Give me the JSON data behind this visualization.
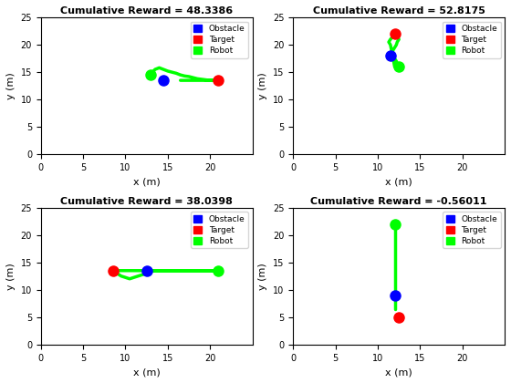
{
  "subplots": [
    {
      "title": "Cumulative Reward = 48.3386",
      "obstacle": [
        14.5,
        13.5
      ],
      "target": [
        21.0,
        13.5
      ],
      "robot_path_x": [
        13.0,
        13.2,
        13.5,
        14.0,
        14.5,
        15.0,
        15.5,
        16.0,
        16.5,
        17.0,
        17.5,
        18.0,
        18.5,
        19.0,
        19.5,
        20.0,
        20.5,
        21.0,
        20.5,
        20.0,
        19.5,
        19.0,
        18.5,
        18.0,
        17.5,
        17.0,
        16.5
      ],
      "robot_path_y": [
        14.5,
        15.0,
        15.5,
        15.8,
        15.5,
        15.2,
        15.0,
        14.8,
        14.5,
        14.3,
        14.2,
        14.0,
        13.8,
        13.7,
        13.6,
        13.5,
        13.5,
        13.5,
        13.5,
        13.5,
        13.5,
        13.5,
        13.5,
        13.5,
        13.5,
        13.5,
        13.5
      ],
      "xlim": [
        0,
        25
      ],
      "ylim": [
        0,
        25
      ],
      "xticks": [
        0,
        5,
        10,
        15,
        20
      ],
      "yticks": [
        0,
        5,
        10,
        15,
        20,
        25
      ]
    },
    {
      "title": "Cumulative Reward = 52.8175",
      "obstacle": [
        11.5,
        18.0
      ],
      "target": [
        12.0,
        22.0
      ],
      "robot_path_x": [
        12.5,
        12.3,
        12.2,
        12.0,
        11.8,
        11.7,
        11.8,
        12.0,
        12.2,
        12.3,
        12.5,
        12.3,
        12.0,
        11.8,
        11.5,
        11.3,
        11.5,
        12.0
      ],
      "robot_path_y": [
        16.0,
        16.5,
        17.0,
        17.5,
        18.0,
        18.5,
        19.0,
        19.5,
        20.0,
        20.5,
        21.0,
        21.5,
        22.0,
        21.5,
        21.0,
        20.5,
        20.0,
        16.0
      ],
      "xlim": [
        0,
        25
      ],
      "ylim": [
        0,
        25
      ],
      "xticks": [
        0,
        5,
        10,
        15,
        20
      ],
      "yticks": [
        0,
        5,
        10,
        15,
        20,
        25
      ]
    },
    {
      "title": "Cumulative Reward = 38.0398",
      "obstacle": [
        12.5,
        13.5
      ],
      "target": [
        8.5,
        13.5
      ],
      "robot_path_x": [
        21.0,
        20.0,
        19.0,
        18.0,
        17.0,
        16.0,
        15.0,
        14.0,
        13.5,
        13.0,
        12.5,
        11.5,
        10.5,
        9.5,
        9.0,
        8.5,
        9.0,
        10.0,
        11.0,
        12.0,
        13.0,
        14.0,
        15.0,
        16.0,
        17.0,
        18.0,
        19.0,
        20.0,
        21.0
      ],
      "robot_path_y": [
        13.5,
        13.5,
        13.5,
        13.5,
        13.5,
        13.5,
        13.5,
        13.5,
        13.5,
        13.3,
        13.0,
        12.5,
        12.0,
        12.5,
        13.0,
        13.5,
        13.5,
        13.5,
        13.5,
        13.5,
        13.5,
        13.5,
        13.5,
        13.5,
        13.5,
        13.5,
        13.5,
        13.5,
        13.5
      ],
      "xlim": [
        0,
        25
      ],
      "ylim": [
        0,
        25
      ],
      "xticks": [
        0,
        5,
        10,
        15,
        20
      ],
      "yticks": [
        0,
        5,
        10,
        15,
        20,
        25
      ]
    },
    {
      "title": "Cumulative Reward = -0.56011",
      "obstacle": [
        12.0,
        9.0
      ],
      "target": [
        12.5,
        5.0
      ],
      "robot_path_x": [
        12.0,
        12.0,
        12.0,
        12.0,
        12.0,
        12.0,
        12.0,
        12.0,
        12.0,
        12.0,
        12.0,
        12.0,
        12.0,
        12.0,
        12.0,
        12.0,
        12.0,
        12.0,
        12.0,
        12.0
      ],
      "robot_path_y": [
        22.0,
        21.0,
        20.0,
        19.0,
        18.0,
        17.0,
        16.0,
        15.0,
        14.0,
        13.0,
        12.0,
        11.0,
        10.0,
        9.5,
        9.0,
        8.5,
        8.0,
        7.5,
        7.0,
        6.5
      ],
      "xlim": [
        0,
        25
      ],
      "ylim": [
        0,
        25
      ],
      "xticks": [
        0,
        5,
        10,
        15,
        20
      ],
      "yticks": [
        0,
        5,
        10,
        15,
        20,
        25
      ]
    }
  ],
  "obstacle_color": "#0000FF",
  "target_color": "#FF0000",
  "robot_color": "#00FF00",
  "xlabel": "x (m)",
  "ylabel": "y (m)",
  "legend_labels": [
    "Obstacle",
    "Target",
    "Robot"
  ],
  "figsize": [
    5.6,
    4.2
  ],
  "dpi": 100
}
